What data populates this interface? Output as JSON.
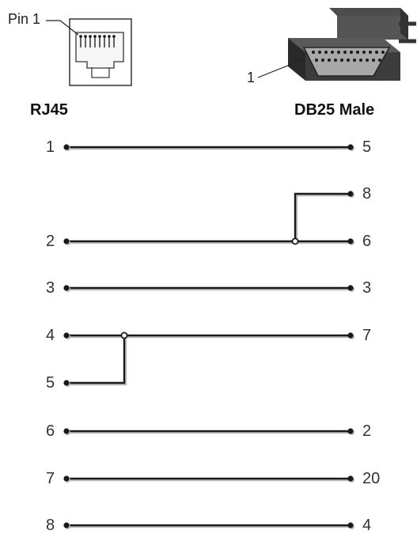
{
  "rj45_connector": {
    "title": "RJ45",
    "pin1_callout": "Pin 1"
  },
  "db25_connector": {
    "title": "DB25 Male",
    "pin1_callout": "1"
  },
  "colors": {
    "wire": "#1a1a1a",
    "shadow": "#bdbdbd"
  },
  "pinout": [
    {
      "rj45": "1",
      "db25": "5"
    },
    {
      "rj45": "",
      "db25": "8"
    },
    {
      "rj45": "2",
      "db25": "6"
    },
    {
      "rj45": "3",
      "db25": "3"
    },
    {
      "rj45": "4",
      "db25": "7"
    },
    {
      "rj45": "5",
      "db25": ""
    },
    {
      "rj45": "6",
      "db25": "2"
    },
    {
      "rj45": "7",
      "db25": "20"
    },
    {
      "rj45": "8",
      "db25": "4"
    }
  ]
}
